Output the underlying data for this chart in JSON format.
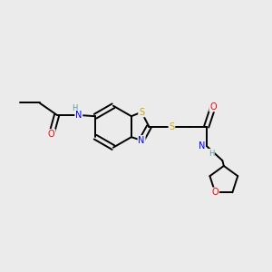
{
  "bg_color": "#ebebeb",
  "atom_colors": {
    "C": "#000000",
    "N": "#0000ff",
    "O": "#ff0000",
    "S": "#ccaa00",
    "H": "#5a9a9a"
  },
  "bond_color": "#000000",
  "line_width": 1.4,
  "figsize": [
    3.0,
    3.0
  ],
  "dpi": 100,
  "xlim": [
    0,
    10
  ],
  "ylim": [
    0,
    10
  ]
}
